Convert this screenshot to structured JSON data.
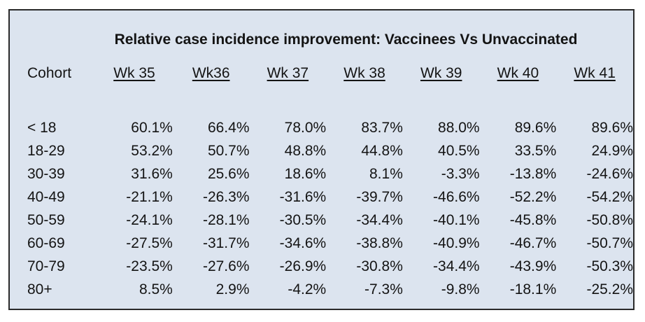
{
  "chart_data": {
    "type": "table",
    "title": "Relative case incidence improvement:  Vaccinees Vs Unvaccinated",
    "row_header_label": "Cohort",
    "columns": [
      "Wk 35",
      "Wk36",
      "Wk 37",
      "Wk 38",
      "Wk 39",
      "Wk 40",
      "Wk 41"
    ],
    "rows": [
      {
        "cohort": "< 18",
        "values": [
          "60.1%",
          "66.4%",
          "78.0%",
          "83.7%",
          "88.0%",
          "89.6%",
          "89.6%"
        ]
      },
      {
        "cohort": "18-29",
        "values": [
          "53.2%",
          "50.7%",
          "48.8%",
          "44.8%",
          "40.5%",
          "33.5%",
          "24.9%"
        ]
      },
      {
        "cohort": "30-39",
        "values": [
          "31.6%",
          "25.6%",
          "18.6%",
          "8.1%",
          "-3.3%",
          "-13.8%",
          "-24.6%"
        ]
      },
      {
        "cohort": "40-49",
        "values": [
          "-21.1%",
          "-26.3%",
          "-31.6%",
          "-39.7%",
          "-46.6%",
          "-52.2%",
          "-54.2%"
        ]
      },
      {
        "cohort": "50-59",
        "values": [
          "-24.1%",
          "-28.1%",
          "-30.5%",
          "-34.4%",
          "-40.1%",
          "-45.8%",
          "-50.8%"
        ]
      },
      {
        "cohort": "60-69",
        "values": [
          "-27.5%",
          "-31.7%",
          "-34.6%",
          "-38.8%",
          "-40.9%",
          "-46.7%",
          "-50.7%"
        ]
      },
      {
        "cohort": "70-79",
        "values": [
          "-23.5%",
          "-27.6%",
          "-26.9%",
          "-30.8%",
          "-34.4%",
          "-43.9%",
          "-50.3%"
        ]
      },
      {
        "cohort": "80+",
        "values": [
          "8.5%",
          "2.9%",
          "-4.2%",
          "-7.3%",
          "-9.8%",
          "-18.1%",
          "-25.2%"
        ]
      }
    ]
  },
  "colors": {
    "panel_background": "#dce4ef",
    "border": "#2a2a2a",
    "text": "#141414"
  }
}
